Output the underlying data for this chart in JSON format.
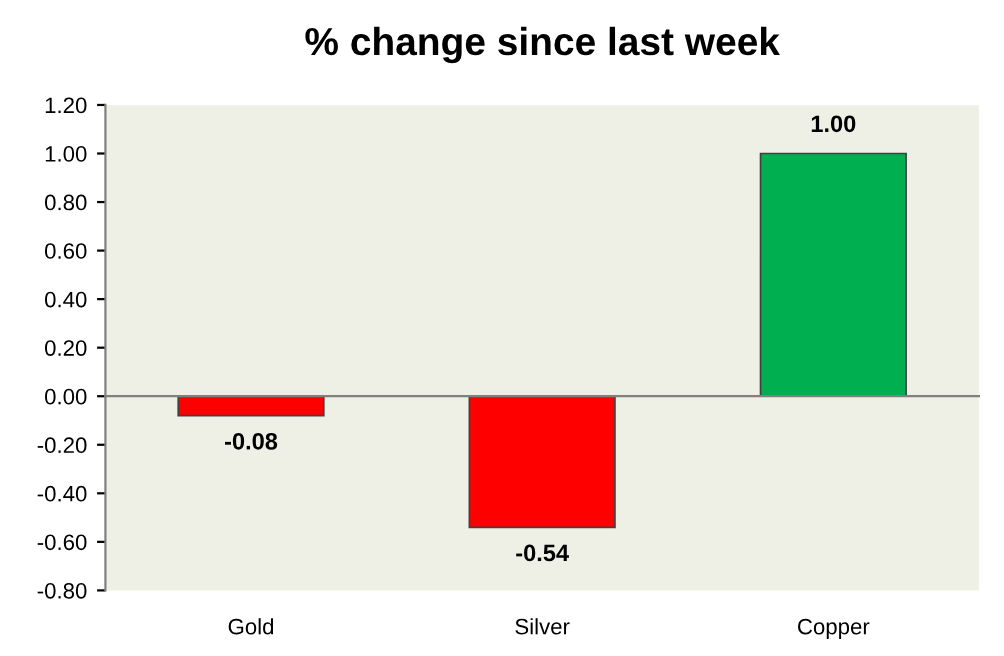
{
  "chart_data": {
    "type": "bar",
    "title": "% change since last week",
    "categories": [
      "Gold",
      "Silver",
      "Copper"
    ],
    "values": [
      -0.08,
      -0.54,
      1.0
    ],
    "colors": [
      "#ff0000",
      "#ff0000",
      "#00b050"
    ],
    "value_labels": [
      "-0.08",
      "-0.54",
      "1.00"
    ],
    "ylim": [
      -0.8,
      1.2
    ],
    "yticks": [
      {
        "value": -0.8,
        "label": "-0.80"
      },
      {
        "value": -0.6,
        "label": "-0.60"
      },
      {
        "value": -0.4,
        "label": "-0.40"
      },
      {
        "value": -0.2,
        "label": "-0.20"
      },
      {
        "value": 0,
        "label": "0.00"
      },
      {
        "value": 0.2,
        "label": "0.20"
      },
      {
        "value": 0.4,
        "label": "0.40"
      },
      {
        "value": 0.6,
        "label": "0.60"
      },
      {
        "value": 0.8,
        "label": "0.80"
      },
      {
        "value": 1.0,
        "label": "1.00"
      },
      {
        "value": 1.2,
        "label": "1.20"
      }
    ],
    "legend": false
  }
}
